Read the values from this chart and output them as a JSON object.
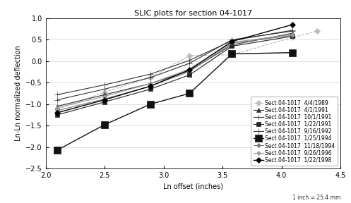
{
  "title": "SLIC plots for section 04-1017",
  "xlabel": "Ln offset (inches)",
  "ylabel": "Ln-Ln normalized deflection",
  "xlim": [
    2.0,
    4.5
  ],
  "ylim": [
    -2.5,
    1.0
  ],
  "xticks": [
    2.0,
    2.5,
    3.0,
    3.5,
    4.0,
    4.5
  ],
  "yticks": [
    -2.5,
    -2.0,
    -1.5,
    -1.0,
    -0.5,
    0.0,
    0.5,
    1.0
  ],
  "footnote": "1 inch = 25.4 mm",
  "series": [
    {
      "label": "Sect.04-1017  4/4/1989",
      "color": "#bbbbbb",
      "marker": "D",
      "markersize": 4,
      "linewidth": 0.8,
      "linestyle": "--",
      "markerfacecolor": "#bbbbbb",
      "x": [
        2.1,
        2.5,
        2.89,
        3.22,
        3.58,
        4.09,
        4.3
      ],
      "y": [
        -1.12,
        -0.72,
        -0.38,
        0.13,
        0.15,
        0.55,
        0.7
      ]
    },
    {
      "label": "Sect.04-1017  4/1/1991",
      "color": "#333333",
      "marker": "^",
      "markersize": 5,
      "linewidth": 0.8,
      "linestyle": "-",
      "markerfacecolor": "#333333",
      "x": [
        2.1,
        2.5,
        2.89,
        3.22,
        3.58,
        4.09
      ],
      "y": [
        -1.05,
        -0.78,
        -0.52,
        -0.22,
        0.38,
        0.65
      ]
    },
    {
      "label": "Sect.04-1017  10/1/1991",
      "color": "#333333",
      "marker": "+",
      "markersize": 6,
      "linewidth": 0.8,
      "linestyle": "-",
      "markerfacecolor": "#333333",
      "x": [
        2.1,
        2.5,
        2.89,
        3.22,
        3.58,
        4.09
      ],
      "y": [
        -0.78,
        -0.55,
        -0.3,
        0.02,
        0.48,
        0.72
      ]
    },
    {
      "label": "Sect.04-1017  1/22/1991",
      "color": "#222222",
      "marker": "s",
      "markersize": 4,
      "linewidth": 0.8,
      "linestyle": "-",
      "markerfacecolor": "#222222",
      "x": [
        2.1,
        2.5,
        2.89,
        3.22,
        3.58,
        4.09
      ],
      "y": [
        -1.25,
        -0.95,
        -0.65,
        -0.32,
        0.35,
        0.58
      ]
    },
    {
      "label": "Sect.04-1017  9/16/1992",
      "color": "#333333",
      "marker": "+",
      "markersize": 6,
      "linewidth": 0.8,
      "linestyle": "-",
      "markerfacecolor": "#333333",
      "x": [
        2.1,
        2.5,
        2.89,
        3.22,
        3.58,
        4.09
      ],
      "y": [
        -0.9,
        -0.65,
        -0.38,
        -0.05,
        0.5,
        0.7
      ]
    },
    {
      "label": "Sect.04-1017  1/25/1994",
      "color": "#111111",
      "marker": "s",
      "markersize": 7,
      "linewidth": 1.0,
      "linestyle": "-",
      "markerfacecolor": "#111111",
      "x": [
        2.1,
        2.5,
        2.89,
        3.22,
        3.58,
        4.09
      ],
      "y": [
        -2.07,
        -1.48,
        -1.0,
        -0.75,
        0.17,
        0.2
      ]
    },
    {
      "label": "Sect.04-1017  11/18/1994",
      "color": "#777777",
      "marker": "D",
      "markersize": 3,
      "linewidth": 0.8,
      "linestyle": "-",
      "markerfacecolor": "#777777",
      "x": [
        2.1,
        2.5,
        2.89,
        3.22,
        3.58,
        4.09
      ],
      "y": [
        -1.15,
        -0.88,
        -0.58,
        -0.24,
        0.42,
        0.6
      ]
    },
    {
      "label": "Sect.04-1017  9/26/1996",
      "color": "#999999",
      "marker": "D",
      "markersize": 3,
      "linewidth": 0.8,
      "linestyle": "-",
      "markerfacecolor": "#999999",
      "x": [
        2.1,
        2.5,
        2.89,
        3.22,
        3.58,
        4.09
      ],
      "y": [
        -1.08,
        -0.82,
        -0.52,
        -0.18,
        0.44,
        0.62
      ]
    },
    {
      "label": "Sect.04-1017  1/22/1998",
      "color": "#000000",
      "marker": "D",
      "markersize": 4,
      "linewidth": 1.0,
      "linestyle": "-",
      "markerfacecolor": "#000000",
      "x": [
        2.1,
        2.5,
        2.89,
        3.22,
        3.58,
        4.09
      ],
      "y": [
        -1.2,
        -0.9,
        -0.58,
        -0.2,
        0.46,
        0.85
      ]
    }
  ]
}
